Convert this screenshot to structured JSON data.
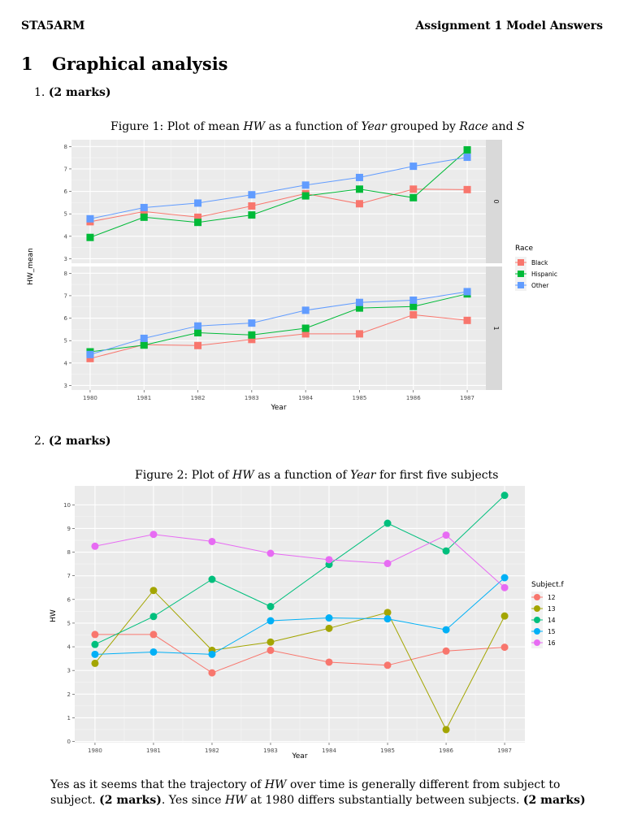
{
  "header": {
    "left": "STA5ARM",
    "right": "Assignment 1 Model Answers"
  },
  "section": {
    "number": "1",
    "title": "Graphical analysis"
  },
  "items": [
    {
      "number": "1.",
      "marks": "(2 marks)"
    },
    {
      "number": "2.",
      "marks": "(2 marks)"
    }
  ],
  "figures": [
    {
      "label": "Figure 1:",
      "caption_parts": [
        "Plot of mean",
        "HW",
        "as a function of",
        "Year",
        "grouped by",
        "Race",
        "and",
        "S"
      ]
    },
    {
      "label": "Figure 2:",
      "caption_parts": [
        "Plot of",
        "HW",
        "as a function of",
        "Year",
        "for first five subjects"
      ]
    }
  ],
  "answer": {
    "t1": "Yes as it seems that the trajectory of",
    "t2": "HW",
    "t3": "over time is generally different from subject to subject.",
    "t4": "(2 marks)",
    "t5": ". Yes since",
    "t6": "HW",
    "t7": "at 1980 differs substantially between subjects.",
    "t8": "(2 marks)"
  },
  "chart_data": [
    {
      "type": "line",
      "xlabel": "Year",
      "ylabel": "HW_mean",
      "x": [
        1980,
        1981,
        1982,
        1983,
        1984,
        1985,
        1986,
        1987
      ],
      "ylim": [
        2.8,
        8.3
      ],
      "yticks": [
        3,
        4,
        5,
        6,
        7,
        8
      ],
      "facet_var": "S",
      "legend_title": "Race",
      "legend_position": "right",
      "colors": {
        "Black": "#F8766D",
        "Hispanic": "#00BA38",
        "Other": "#619CFF"
      },
      "panels": [
        {
          "strip": "0",
          "series": [
            {
              "name": "Black",
              "values": [
                4.65,
                5.1,
                4.85,
                5.35,
                5.9,
                5.45,
                6.1,
                6.08
              ]
            },
            {
              "name": "Hispanic",
              "values": [
                3.95,
                4.85,
                4.62,
                4.95,
                5.8,
                6.1,
                5.72,
                7.85
              ]
            },
            {
              "name": "Other",
              "values": [
                4.78,
                5.28,
                5.48,
                5.85,
                6.28,
                6.62,
                7.12,
                7.52
              ]
            }
          ]
        },
        {
          "strip": "1",
          "series": [
            {
              "name": "Black",
              "values": [
                4.2,
                4.82,
                4.78,
                5.05,
                5.3,
                5.3,
                6.15,
                5.9
              ]
            },
            {
              "name": "Hispanic",
              "values": [
                4.5,
                4.8,
                5.35,
                5.25,
                5.55,
                6.45,
                6.52,
                7.08
              ]
            },
            {
              "name": "Other",
              "values": [
                4.38,
                5.1,
                5.65,
                5.78,
                6.35,
                6.7,
                6.8,
                7.18
              ]
            }
          ]
        }
      ]
    },
    {
      "type": "line",
      "xlabel": "Year",
      "ylabel": "HW",
      "x": [
        1980,
        1981,
        1982,
        1983,
        1984,
        1985,
        1986,
        1987
      ],
      "ylim": [
        -0.05,
        10.8
      ],
      "yticks": [
        0,
        1,
        2,
        3,
        4,
        5,
        6,
        7,
        8,
        9,
        10
      ],
      "legend_title": "Subject.f",
      "legend_position": "right",
      "colors": {
        "12": "#F8766D",
        "13": "#A3A500",
        "14": "#00BF7D",
        "15": "#00B0F6",
        "16": "#E76BF3"
      },
      "series": [
        {
          "name": "12",
          "values": [
            4.52,
            4.52,
            2.9,
            3.85,
            3.35,
            3.22,
            3.82,
            3.98
          ]
        },
        {
          "name": "13",
          "values": [
            3.3,
            6.38,
            3.85,
            4.2,
            4.78,
            5.45,
            0.5,
            5.3
          ]
        },
        {
          "name": "14",
          "values": [
            4.1,
            5.28,
            6.85,
            5.7,
            7.48,
            9.22,
            8.05,
            10.4
          ]
        },
        {
          "name": "15",
          "values": [
            3.68,
            3.78,
            3.68,
            5.1,
            5.22,
            5.18,
            4.72,
            6.92
          ]
        },
        {
          "name": "16",
          "values": [
            8.25,
            8.75,
            8.45,
            7.95,
            7.68,
            7.52,
            8.72,
            6.5
          ]
        }
      ]
    }
  ]
}
